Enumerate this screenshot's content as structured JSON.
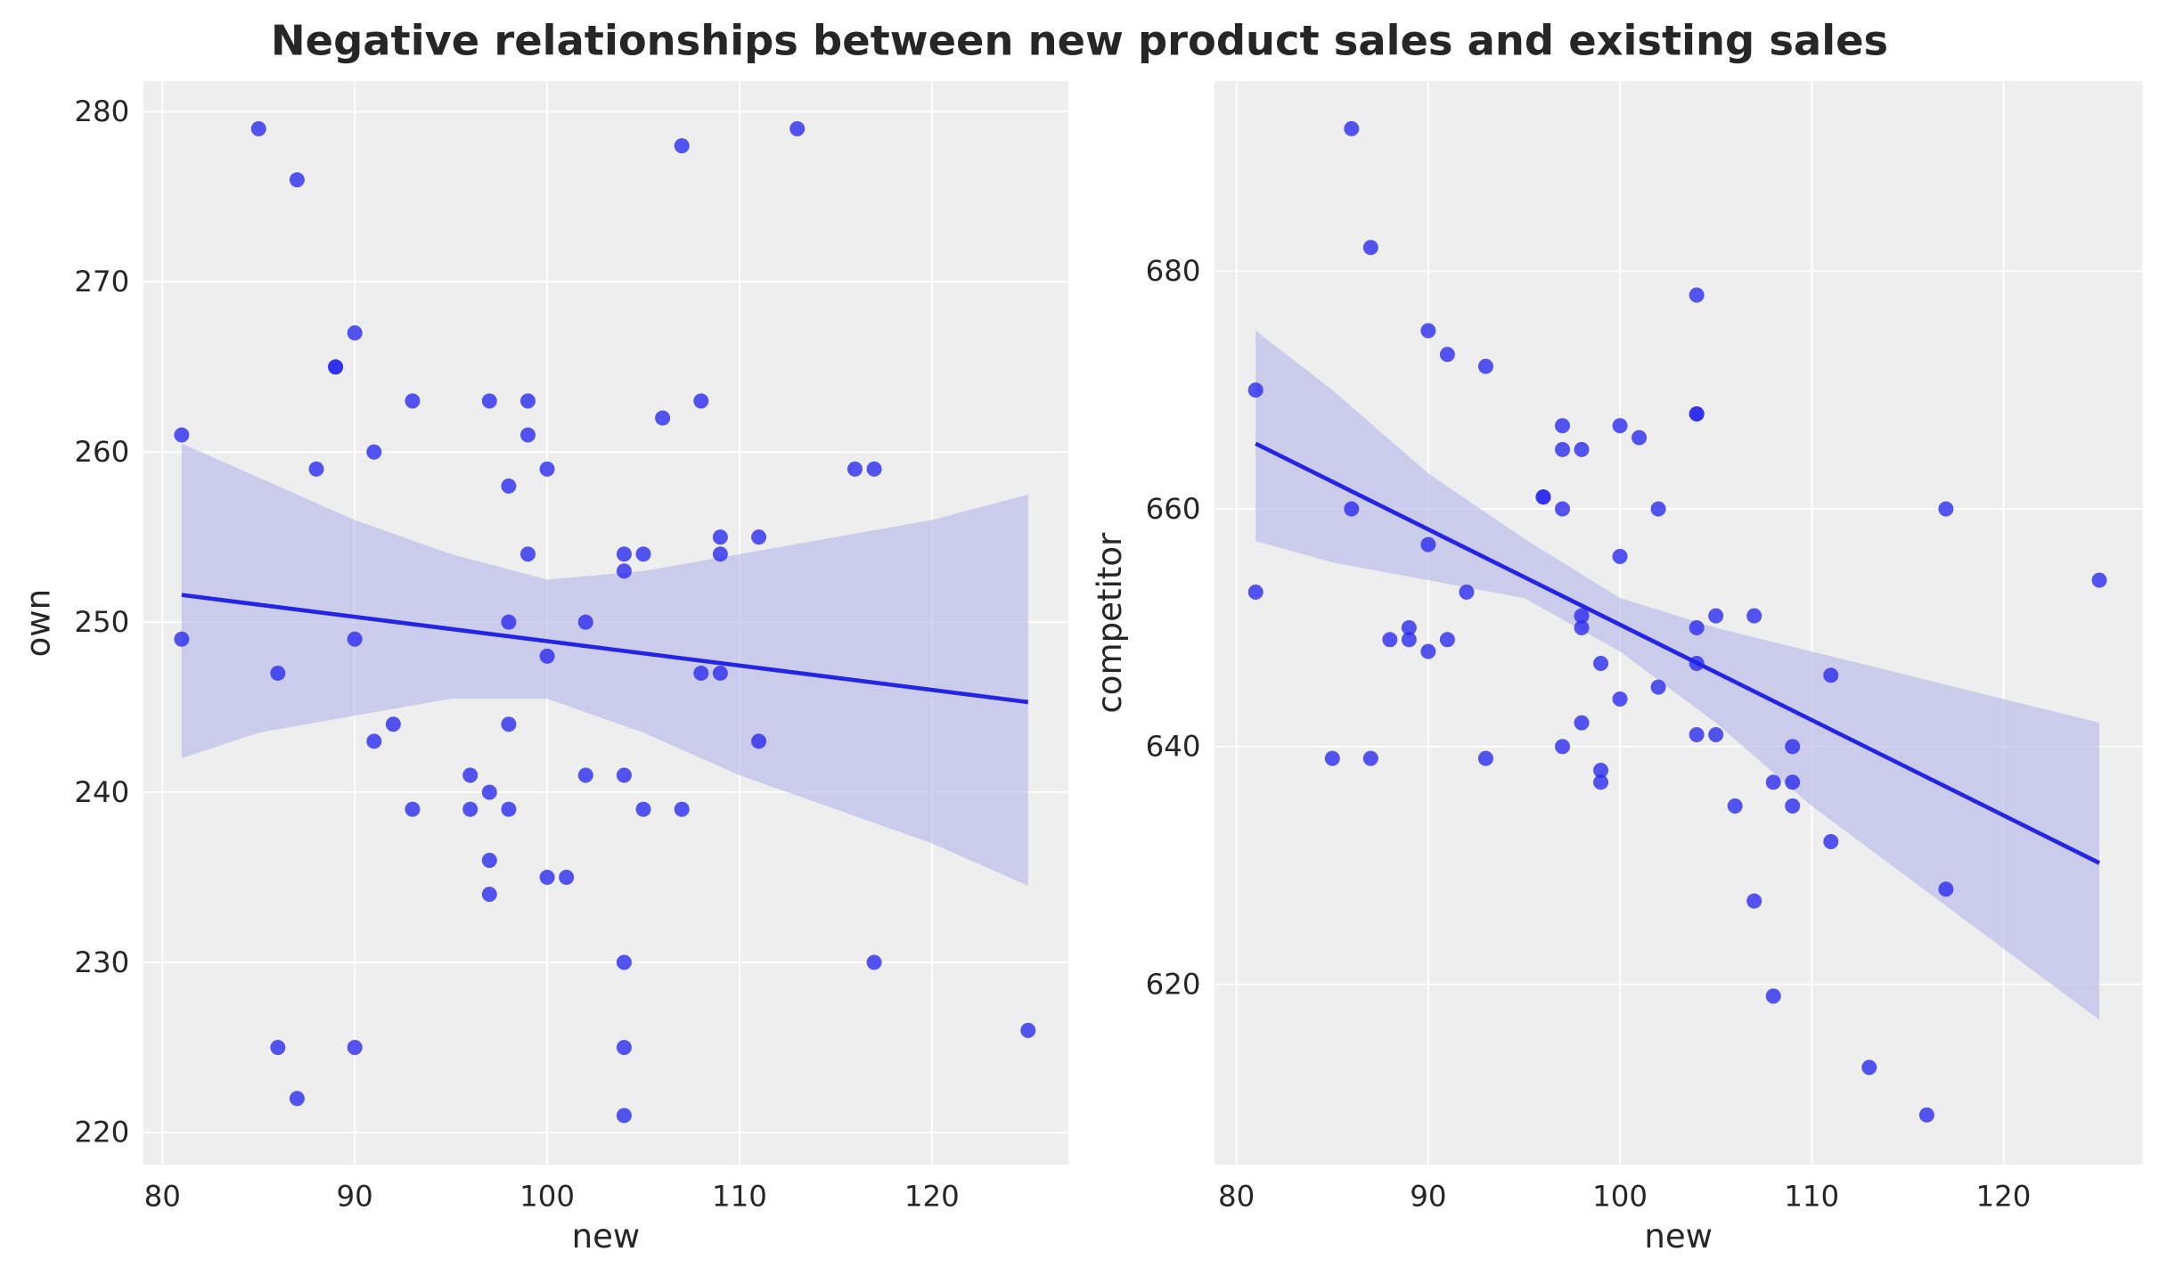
{
  "chart_data": {
    "title": "Negative relationships between new product sales and existing sales",
    "colors": {
      "points": "#2a2aee",
      "line": "#2424e6",
      "band": "#b4b4ea",
      "background": "#eeeeee",
      "grid": "#ffffff"
    },
    "panels": [
      {
        "type": "scatter",
        "xlabel": "new",
        "ylabel": "own",
        "xlim": [
          79,
          127.1
        ],
        "ylim": [
          218.1,
          281.8
        ],
        "xticks": [
          80,
          90,
          100,
          110,
          120
        ],
        "yticks": [
          220,
          230,
          240,
          250,
          260,
          270,
          280
        ],
        "grid": true,
        "points": [
          [
            81,
            261
          ],
          [
            81,
            249
          ],
          [
            85,
            279
          ],
          [
            87,
            276
          ],
          [
            86,
            247
          ],
          [
            86,
            225
          ],
          [
            87,
            222
          ],
          [
            88,
            259
          ],
          [
            89,
            265
          ],
          [
            89,
            265
          ],
          [
            90,
            267
          ],
          [
            90,
            249
          ],
          [
            90,
            225
          ],
          [
            91,
            260
          ],
          [
            91,
            243
          ],
          [
            92,
            244
          ],
          [
            93,
            263
          ],
          [
            93,
            239
          ],
          [
            96,
            241
          ],
          [
            96,
            239
          ],
          [
            97,
            263
          ],
          [
            97,
            240
          ],
          [
            97,
            236
          ],
          [
            97,
            234
          ],
          [
            98,
            258
          ],
          [
            98,
            250
          ],
          [
            98,
            244
          ],
          [
            98,
            239
          ],
          [
            99,
            263
          ],
          [
            99,
            261
          ],
          [
            99,
            254
          ],
          [
            100,
            259
          ],
          [
            100,
            248
          ],
          [
            100,
            235
          ],
          [
            101,
            235
          ],
          [
            102,
            250
          ],
          [
            102,
            241
          ],
          [
            104,
            254
          ],
          [
            104,
            253
          ],
          [
            104,
            241
          ],
          [
            104,
            230
          ],
          [
            104,
            225
          ],
          [
            104,
            221
          ],
          [
            105,
            254
          ],
          [
            105,
            239
          ],
          [
            106,
            262
          ],
          [
            107,
            278
          ],
          [
            107,
            239
          ],
          [
            108,
            263
          ],
          [
            108,
            247
          ],
          [
            109,
            255
          ],
          [
            109,
            254
          ],
          [
            109,
            247
          ],
          [
            111,
            255
          ],
          [
            111,
            243
          ],
          [
            113,
            279
          ],
          [
            116,
            259
          ],
          [
            117,
            259
          ],
          [
            117,
            230
          ],
          [
            125,
            226
          ]
        ],
        "regression": {
          "x": [
            81,
            125
          ],
          "y": [
            251.6,
            245.3
          ]
        },
        "ci_band": {
          "x": [
            81,
            85,
            90,
            95,
            100,
            105,
            110,
            115,
            120,
            125
          ],
          "lower": [
            242,
            243.5,
            244.5,
            245.5,
            245.5,
            243.5,
            241,
            239,
            237,
            234.5
          ],
          "upper": [
            260.5,
            258.5,
            256,
            254,
            252.5,
            253,
            254,
            255,
            256,
            257.5
          ]
        }
      },
      {
        "type": "scatter",
        "xlabel": "new",
        "ylabel": "competitor",
        "xlim": [
          78.85,
          127.25
        ],
        "ylim": [
          604.8,
          696
        ],
        "xticks": [
          80,
          90,
          100,
          110,
          120
        ],
        "yticks": [
          620,
          640,
          660,
          680
        ],
        "grid": true,
        "points": [
          [
            81,
            670
          ],
          [
            81,
            653
          ],
          [
            85,
            639
          ],
          [
            86,
            692
          ],
          [
            86,
            660
          ],
          [
            87,
            682
          ],
          [
            87,
            639
          ],
          [
            88,
            649
          ],
          [
            89,
            650
          ],
          [
            89,
            649
          ],
          [
            90,
            675
          ],
          [
            90,
            657
          ],
          [
            90,
            648
          ],
          [
            91,
            673
          ],
          [
            91,
            649
          ],
          [
            92,
            653
          ],
          [
            93,
            672
          ],
          [
            93,
            639
          ],
          [
            96,
            661
          ],
          [
            96,
            661
          ],
          [
            97,
            667
          ],
          [
            97,
            665
          ],
          [
            97,
            660
          ],
          [
            97,
            640
          ],
          [
            98,
            665
          ],
          [
            98,
            651
          ],
          [
            98,
            650
          ],
          [
            98,
            642
          ],
          [
            99,
            647
          ],
          [
            99,
            638
          ],
          [
            99,
            637
          ],
          [
            100,
            667
          ],
          [
            100,
            656
          ],
          [
            100,
            644
          ],
          [
            101,
            666
          ],
          [
            102,
            660
          ],
          [
            102,
            645
          ],
          [
            104,
            678
          ],
          [
            104,
            668
          ],
          [
            104,
            668
          ],
          [
            104,
            650
          ],
          [
            104,
            647
          ],
          [
            104,
            641
          ],
          [
            105,
            651
          ],
          [
            105,
            641
          ],
          [
            106,
            635
          ],
          [
            107,
            651
          ],
          [
            107,
            627
          ],
          [
            108,
            637
          ],
          [
            108,
            619
          ],
          [
            109,
            640
          ],
          [
            109,
            637
          ],
          [
            109,
            635
          ],
          [
            111,
            632
          ],
          [
            111,
            646
          ],
          [
            113,
            613
          ],
          [
            116,
            609
          ],
          [
            117,
            660
          ],
          [
            117,
            628
          ],
          [
            125,
            654
          ]
        ],
        "regression": {
          "x": [
            81,
            125
          ],
          "y": [
            665.5,
            630.2
          ]
        },
        "ci_band": {
          "x": [
            81,
            85,
            90,
            95,
            100,
            105,
            110,
            115,
            120,
            125
          ],
          "lower": [
            657.3,
            655.5,
            654,
            652.5,
            648,
            642,
            635,
            629,
            623,
            617
          ],
          "upper": [
            675,
            670,
            663,
            657.5,
            652.5,
            650,
            648,
            646,
            644,
            642
          ]
        }
      }
    ]
  }
}
